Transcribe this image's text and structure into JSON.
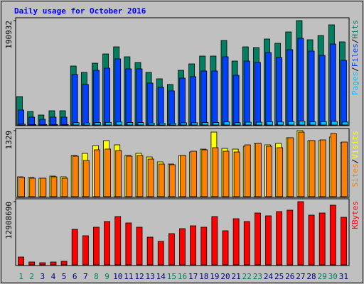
{
  "title": "Daily usage for October 2016",
  "legend_separator": "/",
  "chart_data": [
    {
      "type": "bar",
      "series": [
        {
          "name": "Hits",
          "color": "#008060",
          "values": [
            51960,
            24680,
            18185,
            25980,
            25980,
            107810,
            96120,
            113000,
            129890,
            142880,
            124690,
            114300,
            96120,
            84430,
            74040,
            100010,
            111700,
            126000,
            126000,
            154570,
            116900,
            142880,
            141580,
            157170,
            149370,
            170160,
            190932,
            155870,
            163660,
            183150,
            151970
          ]
        },
        {
          "name": "Files",
          "color": "#0040ff",
          "values": [
            27280,
            14290,
            10390,
            14290,
            14290,
            92220,
            74040,
            100010,
            103910,
            120800,
            102610,
            102610,
            76640,
            68840,
            62350,
            85730,
            88330,
            98720,
            98720,
            124690,
            90920,
            116900,
            114300,
            132490,
            123400,
            137680,
            158470,
            135090,
            127290,
            148070,
            118200
          ]
        },
        {
          "name": "Pages",
          "color": "#00c0ff",
          "values": [
            1500,
            800,
            600,
            800,
            800,
            4200,
            3600,
            4400,
            4800,
            5400,
            4500,
            4400,
            3500,
            3100,
            2800,
            3900,
            4000,
            4500,
            4500,
            5600,
            4100,
            5200,
            5100,
            5900,
            5500,
            6200,
            7000,
            5800,
            6000,
            6600,
            5400
          ]
        }
      ],
      "ylim": [
        0,
        190932
      ],
      "yticks": [
        190932
      ]
    },
    {
      "type": "bar",
      "series": [
        {
          "name": "Visits",
          "color": "#ffff00",
          "values": [
            400,
            386,
            372,
            414,
            400,
            829,
            872,
            1029,
            1129,
            1043,
            829,
            872,
            800,
            700,
            657,
            829,
            900,
            957,
            1300,
            972,
            957,
            1015,
            1072,
            1043,
            1072,
            1186,
            1329,
            1129,
            1129,
            1200,
            1086
          ]
        },
        {
          "name": "Sites",
          "color": "#ff8000",
          "values": [
            390,
            372,
            372,
            400,
            372,
            815,
            729,
            943,
            958,
            929,
            815,
            829,
            757,
            657,
            643,
            829,
            915,
            943,
            986,
            915,
            900,
            1043,
            1072,
            1015,
            986,
            1186,
            1300,
            1129,
            1143,
            1272,
            1100
          ]
        }
      ],
      "ylim": [
        0,
        1329
      ],
      "yticks": [
        1329
      ]
    },
    {
      "type": "bar",
      "categories": [
        "1",
        "2",
        "3",
        "4",
        "5",
        "6",
        "7",
        "8",
        "9",
        "10",
        "11",
        "12",
        "13",
        "14",
        "15",
        "16",
        "17",
        "18",
        "19",
        "20",
        "21",
        "22",
        "23",
        "24",
        "25",
        "26",
        "27",
        "28",
        "29",
        "30",
        "31"
      ],
      "category_colors": [
        "#008060",
        "#008060",
        "#000080",
        "#000080",
        "#000080",
        "#000080",
        "#000080",
        "#008060",
        "#008060",
        "#000080",
        "#000080",
        "#000080",
        "#000080",
        "#000080",
        "#008060",
        "#008060",
        "#000080",
        "#000080",
        "#000080",
        "#000080",
        "#000080",
        "#008060",
        "#008060",
        "#000080",
        "#000080",
        "#000080",
        "#000080",
        "#000080",
        "#008060",
        "#008060",
        "#000080"
      ],
      "series": [
        {
          "name": "KBytes",
          "color": "#ff0000",
          "values": [
            1595460,
            580170,
            435130,
            580170,
            725210,
            7252100,
            5946720,
            7687230,
            8847560,
            9862860,
            8557480,
            7687230,
            5656640,
            4786390,
            6381850,
            7397140,
            7977310,
            7687230,
            9862860,
            6962020,
            9427730,
            8847560,
            10588070,
            10007900,
            10878150,
            11168230,
            12908690,
            10152940,
            10588070,
            12183530,
            9717810
          ]
        }
      ],
      "ylim": [
        0,
        12908690
      ],
      "yticks": [
        12908690
      ]
    }
  ]
}
